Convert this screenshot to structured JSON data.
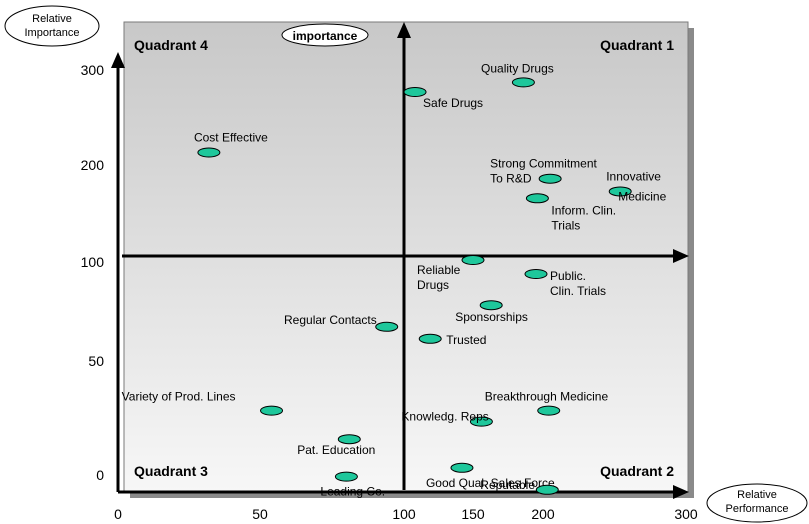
{
  "chart_data": {
    "type": "scatter",
    "xlabel": "Relative Performance",
    "ylabel": "Relative Importance",
    "inner_label": "importance",
    "quadrants": [
      "Quadrant 1",
      "Quadrant 2",
      "Quadrant 3",
      "Quadrant 4"
    ],
    "x_ticks": [
      "0",
      "50",
      "100",
      "150",
      "200",
      "300"
    ],
    "y_ticks": [
      "0",
      "50",
      "100",
      "200",
      "300"
    ],
    "xlim": [
      0,
      300
    ],
    "ylim": [
      0,
      300
    ],
    "grid": false,
    "point_color": "#1ec79b",
    "points": [
      {
        "label": "Quality Drugs",
        "x": 186,
        "y": 285
      },
      {
        "label": "Safe Drugs",
        "x": 108,
        "y": 275
      },
      {
        "label": "Cost Effective",
        "x": 32,
        "y": 212
      },
      {
        "label": "Strong Commitment To R&D",
        "x": 205,
        "y": 185
      },
      {
        "label": "Innovative Medicine",
        "x": 254,
        "y": 172
      },
      {
        "label": "Inform. Clin. Trials",
        "x": 196,
        "y": 165
      },
      {
        "label": "Reliable Drugs",
        "x": 150,
        "y": 102
      },
      {
        "label": "Public. Clin. Trials",
        "x": 195,
        "y": 95
      },
      {
        "label": "Sponsorships",
        "x": 163,
        "y": 82
      },
      {
        "label": "Regular Contacts",
        "x": 94,
        "y": 73
      },
      {
        "label": "Trusted",
        "x": 119,
        "y": 68
      },
      {
        "label": "Variety of Prod. Lines",
        "x": 54,
        "y": 37
      },
      {
        "label": "Breakthrough Medicine",
        "x": 204,
        "y": 37
      },
      {
        "label": "Knowledg. Reps",
        "x": 156,
        "y": 32
      },
      {
        "label": "Pat. Education",
        "x": 81,
        "y": 24
      },
      {
        "label": "Good Qual. Sales Force",
        "x": 142,
        "y": 11
      },
      {
        "label": "Leading Co.",
        "x": 80,
        "y": 7
      },
      {
        "label": "Reputable",
        "x": 203,
        "y": 1
      }
    ]
  }
}
